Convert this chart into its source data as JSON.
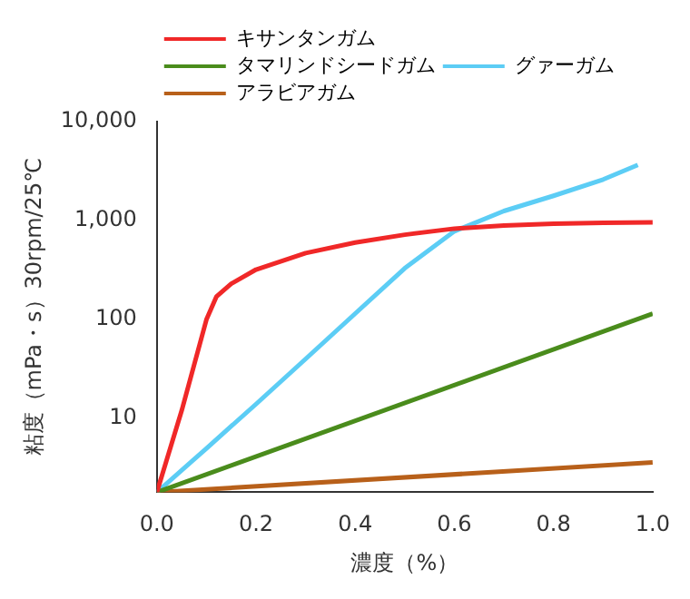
{
  "chart_data": {
    "type": "line",
    "xlabel": "濃度（%）",
    "ylabel": "粘度（mPa・s）30rpm/25℃",
    "series": [
      {
        "name": "キサンタンガム",
        "color": "#f02828",
        "x": [
          0,
          0.05,
          0.1,
          0.12,
          0.15,
          0.2,
          0.3,
          0.4,
          0.5,
          0.6,
          0.7,
          0.8,
          0.9,
          1.0
        ],
        "values": [
          1.8,
          12,
          100,
          170,
          230,
          320,
          470,
          600,
          720,
          830,
          890,
          930,
          950,
          960
        ]
      },
      {
        "name": "タマリンドシードガム",
        "color": "#4a8c1c",
        "x": [
          0,
          1.0
        ],
        "values": [
          1.8,
          115
        ]
      },
      {
        "name": "グァーガム",
        "color": "#5ccdf5",
        "x": [
          0,
          0.1,
          0.2,
          0.3,
          0.4,
          0.5,
          0.6,
          0.7,
          0.8,
          0.9,
          0.97
        ],
        "values": [
          1.8,
          5,
          14,
          40,
          115,
          330,
          780,
          1250,
          1780,
          2600,
          3650
        ]
      },
      {
        "name": "アラビアガム",
        "color": "#b8601a",
        "x": [
          0,
          1.0
        ],
        "values": [
          1.8,
          3.6
        ]
      }
    ],
    "xlim": [
      0,
      1.0
    ],
    "xticks": [
      {
        "value": 0,
        "label": "0.0"
      },
      {
        "value": 0.2,
        "label": "0.2"
      },
      {
        "value": 0.4,
        "label": "0.4"
      },
      {
        "value": 0.6,
        "label": "0.6"
      },
      {
        "value": 0.8,
        "label": "0.8"
      },
      {
        "value": 1.0,
        "label": "1.0"
      }
    ],
    "ylim": [
      1.8,
      10000
    ],
    "yticks": [
      10,
      100,
      {
        "value": 1000,
        "label": "1,000"
      },
      {
        "value": 10000,
        "label": "10,000"
      }
    ],
    "log": true,
    "grid": false,
    "legend": "top left",
    "marker": "none",
    "line_style": "solid"
  }
}
